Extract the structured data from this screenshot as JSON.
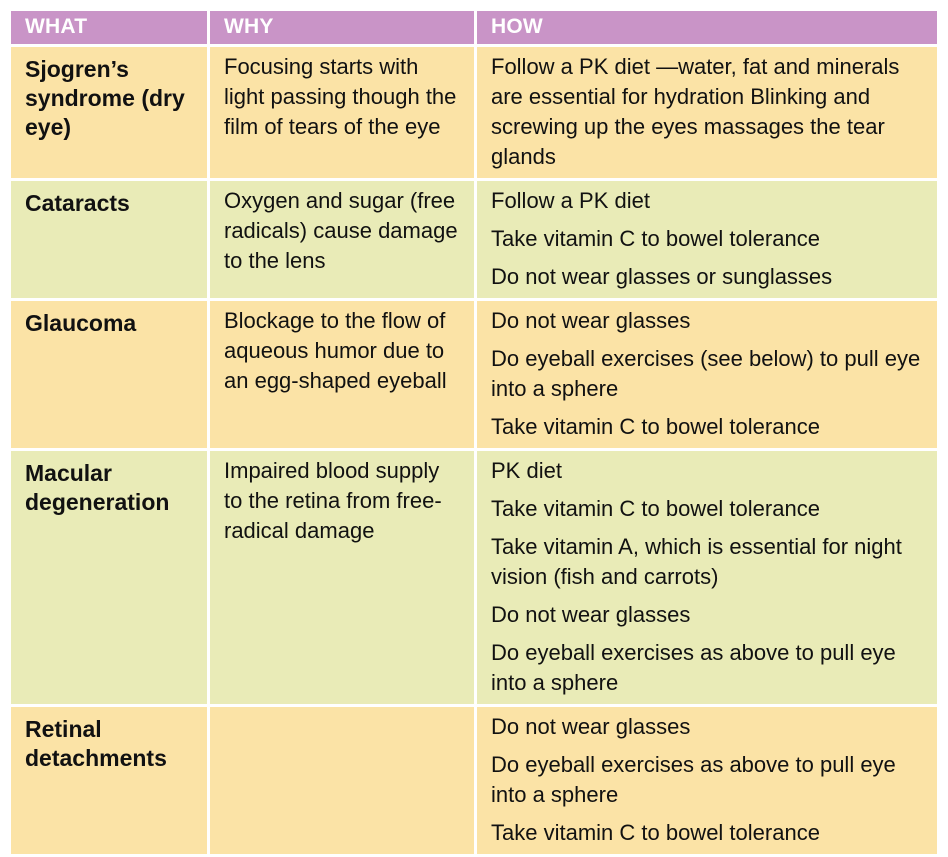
{
  "colors": {
    "header_bg": "#c994c7",
    "row_a": "#fbe3a6",
    "row_b": "#e9ebb7"
  },
  "header": {
    "what": "WHAT",
    "why": "WHY",
    "how": "HOW"
  },
  "rows": [
    {
      "what": "Sjogren’s syndrome (dry eye)",
      "why": "Focusing starts with light passing though the film of tears of the eye",
      "how": [
        "Follow a PK diet —water, fat and minerals are essential for hydration Blinking and screwing up the eyes massages the tear glands"
      ]
    },
    {
      "what": "Cataracts",
      "why": "Oxygen and sugar (free radicals) cause damage to the lens",
      "how": [
        "Follow a PK diet",
        "Take vitamin C to bowel tolerance",
        "Do not wear glasses or sunglasses"
      ]
    },
    {
      "what": "Glaucoma",
      "why": "Blockage to the flow of aqueous humor due to an egg-shaped eyeball",
      "how": [
        "Do not wear glasses",
        "Do eyeball exercises (see below) to pull eye into a sphere",
        "Take vitamin C to bowel tolerance"
      ]
    },
    {
      "what": "Macular degeneration",
      "why": "Impaired blood supply to the retina from free-radical damage",
      "how": [
        "PK diet",
        "Take vitamin C to bowel tolerance",
        "Take vitamin A, which is essential for night vision (fish and carrots)",
        "Do not wear glasses",
        "Do eyeball exercises as above to pull eye into a sphere"
      ]
    },
    {
      "what": "Retinal detachments",
      "why": "",
      "how": [
        "Do not wear glasses",
        "Do eyeball exercises as above to pull eye into a sphere",
        "Take vitamin C to bowel tolerance"
      ]
    }
  ]
}
